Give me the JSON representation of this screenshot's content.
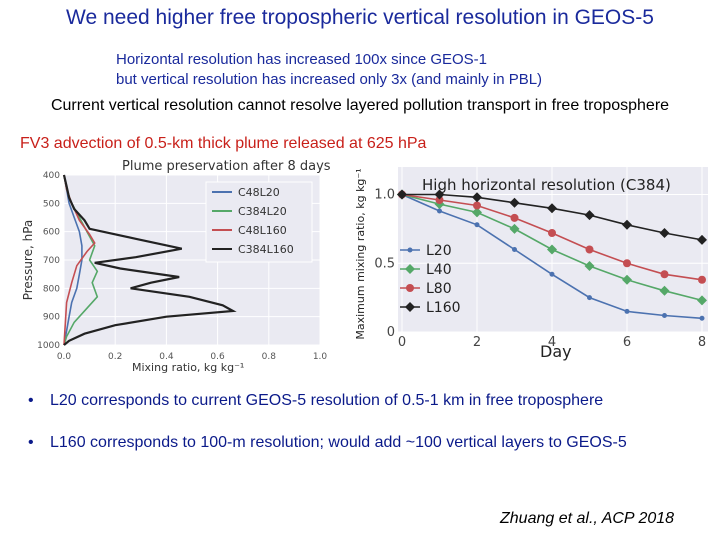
{
  "slide": {
    "title": "We need higher free tropospheric vertical resolution in GEOS-5",
    "subtitle_line1": "Horizontal resolution has increased 100x since GEOS-1",
    "subtitle_line2": "but vertical resolution has increased only 3x (and mainly in PBL)",
    "statement": "Current vertical resolution cannot resolve layered pollution transport in free troposphere",
    "red_heading": "FV3 advection of 0.5-km thick plume released at 625 hPa",
    "bullet1": "L20 corresponds to current GEOS-5 resolution of 0.5-1 km in free troposphere",
    "bullet2": "L160 corresponds to 100-m resolution; would add ~100 vertical layers to GEOS-5",
    "citation": "Zhuang et al., ACP 2018",
    "bullet_char": "•"
  },
  "chart_data": [
    {
      "type": "line",
      "title": "Plume preservation after 8 days",
      "xlabel": "Mixing ratio, kg kg⁻¹",
      "ylabel": "Pressure, hPa",
      "xlim": [
        0,
        1.0
      ],
      "ylim": [
        1000,
        400
      ],
      "xticks": [
        "0.0",
        "0.2",
        "0.4",
        "0.6",
        "0.8",
        "1.0"
      ],
      "yticks": [
        "400",
        "500",
        "600",
        "700",
        "800",
        "900",
        "1000"
      ],
      "legend_position": "right",
      "grid": true,
      "series": [
        {
          "name": "C48L20",
          "color": "#4c72b0",
          "points": [
            [
              0,
              400
            ],
            [
              0.01,
              450
            ],
            [
              0.02,
              500
            ],
            [
              0.04,
              550
            ],
            [
              0.06,
              600
            ],
            [
              0.07,
              650
            ],
            [
              0.07,
              700
            ],
            [
              0.06,
              750
            ],
            [
              0.05,
              800
            ],
            [
              0.03,
              850
            ],
            [
              0.02,
              900
            ],
            [
              0.01,
              950
            ],
            [
              0,
              1000
            ]
          ]
        },
        {
          "name": "C384L20",
          "color": "#55a868",
          "points": [
            [
              0,
              400
            ],
            [
              0.01,
              450
            ],
            [
              0.03,
              500
            ],
            [
              0.06,
              550
            ],
            [
              0.09,
              600
            ],
            [
              0.12,
              650
            ],
            [
              0.1,
              700
            ],
            [
              0.13,
              740
            ],
            [
              0.11,
              780
            ],
            [
              0.13,
              830
            ],
            [
              0.09,
              870
            ],
            [
              0.04,
              920
            ],
            [
              0.01,
              970
            ],
            [
              0,
              1000
            ]
          ]
        },
        {
          "name": "C48L160",
          "color": "#c44e52",
          "points": [
            [
              0,
              400
            ],
            [
              0.01,
              450
            ],
            [
              0.03,
              500
            ],
            [
              0.06,
              560
            ],
            [
              0.1,
              610
            ],
            [
              0.12,
              640
            ],
            [
              0.09,
              670
            ],
            [
              0.05,
              720
            ],
            [
              0.03,
              780
            ],
            [
              0.01,
              850
            ],
            [
              0,
              1000
            ]
          ]
        },
        {
          "name": "C384L160",
          "color": "#222222",
          "points": [
            [
              0,
              400
            ],
            [
              0.01,
              440
            ],
            [
              0.02,
              480
            ],
            [
              0.04,
              520
            ],
            [
              0.08,
              560
            ],
            [
              0.1,
              590
            ],
            [
              0.28,
              625
            ],
            [
              0.46,
              660
            ],
            [
              0.28,
              690
            ],
            [
              0.12,
              710
            ],
            [
              0.22,
              730
            ],
            [
              0.45,
              760
            ],
            [
              0.34,
              780
            ],
            [
              0.26,
              800
            ],
            [
              0.49,
              830
            ],
            [
              0.62,
              860
            ],
            [
              0.66,
              880
            ],
            [
              0.4,
              900
            ],
            [
              0.2,
              930
            ],
            [
              0.08,
              960
            ],
            [
              0.02,
              985
            ],
            [
              0,
              1000
            ]
          ]
        }
      ]
    },
    {
      "type": "line",
      "title": "High horizontal resolution (C384)",
      "xlabel": "Day",
      "ylabel": "Maximum mixing ratio, kg kg⁻¹",
      "xlim": [
        0,
        8
      ],
      "ylim": [
        0,
        1.2
      ],
      "xticks": [
        "0",
        "2",
        "4",
        "6",
        "8"
      ],
      "yticks": [
        "0",
        "0.5",
        "1.0"
      ],
      "legend_position": "left",
      "grid": true,
      "x": [
        0,
        1,
        2,
        3,
        4,
        5,
        6,
        7,
        8
      ],
      "series": [
        {
          "name": "L20",
          "color": "#4c72b0",
          "marker": "dot",
          "values": [
            1.0,
            0.88,
            0.78,
            0.6,
            0.42,
            0.25,
            0.15,
            0.12,
            0.1
          ]
        },
        {
          "name": "L40",
          "color": "#55a868",
          "marker": "diamond",
          "values": [
            1.0,
            0.93,
            0.87,
            0.75,
            0.6,
            0.48,
            0.38,
            0.3,
            0.23
          ]
        },
        {
          "name": "L80",
          "color": "#c44e52",
          "marker": "circle",
          "values": [
            1.0,
            0.96,
            0.92,
            0.83,
            0.72,
            0.6,
            0.5,
            0.42,
            0.38
          ]
        },
        {
          "name": "L160",
          "color": "#222222",
          "marker": "diamond",
          "values": [
            1.0,
            1.0,
            0.98,
            0.94,
            0.9,
            0.85,
            0.78,
            0.72,
            0.67
          ]
        }
      ]
    }
  ]
}
